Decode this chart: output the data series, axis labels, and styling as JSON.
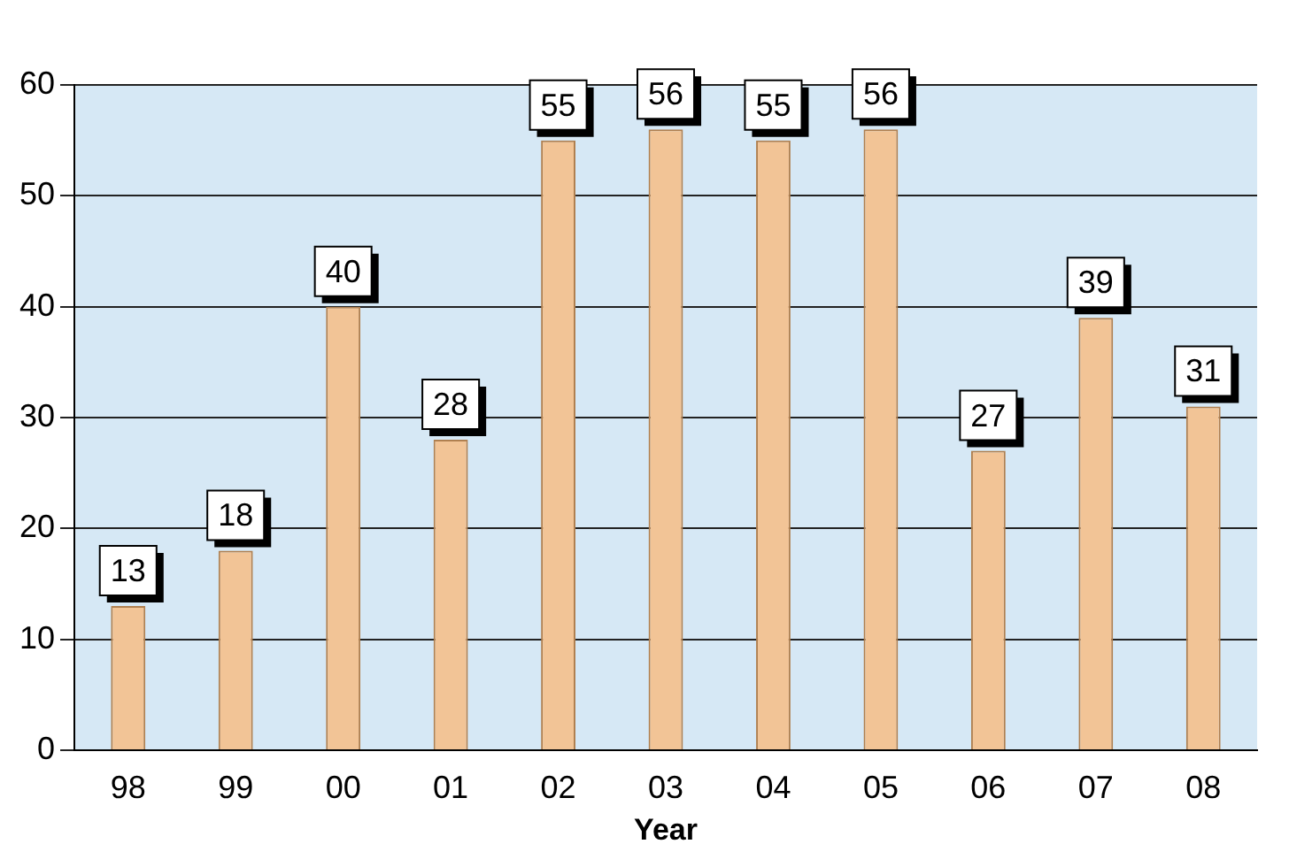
{
  "chart_data": {
    "type": "bar",
    "xlabel": "Year",
    "categories": [
      "98",
      "99",
      "00",
      "01",
      "02",
      "03",
      "04",
      "05",
      "06",
      "07",
      "08"
    ],
    "values": [
      13,
      18,
      40,
      28,
      55,
      56,
      55,
      56,
      27,
      39,
      31
    ],
    "color": "#f2c496",
    "ylim": [
      0,
      60
    ],
    "yticks": [
      0,
      10,
      20,
      30,
      40,
      50,
      60
    ],
    "grid": "y",
    "data_labels": true,
    "legend": false
  }
}
